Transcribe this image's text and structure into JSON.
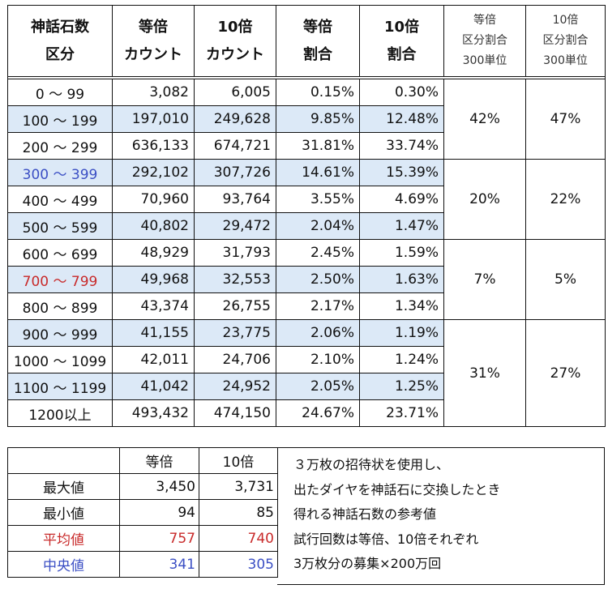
{
  "main_table": {
    "headers": {
      "range": [
        "神話石数",
        "区分"
      ],
      "count_1x": [
        "等倍",
        "カウント"
      ],
      "count_10x": [
        "10倍",
        "カウント"
      ],
      "ratio_1x": [
        "等倍",
        "割合"
      ],
      "ratio_10x": [
        "10倍",
        "割合"
      ],
      "bucket_1x": [
        "等倍",
        "区分割合",
        "300単位"
      ],
      "bucket_10x": [
        "10倍",
        "区分割合",
        "300単位"
      ]
    },
    "rows": [
      {
        "range": "0 〜 99",
        "count_1x": "3,082",
        "count_10x": "6,005",
        "ratio_1x": "0.15%",
        "ratio_10x": "0.30%"
      },
      {
        "range": "100 〜 199",
        "count_1x": "197,010",
        "count_10x": "249,628",
        "ratio_1x": "9.85%",
        "ratio_10x": "12.48%"
      },
      {
        "range": "200 〜 299",
        "count_1x": "636,133",
        "count_10x": "674,721",
        "ratio_1x": "31.81%",
        "ratio_10x": "33.74%"
      },
      {
        "range": "300 〜 399",
        "count_1x": "292,102",
        "count_10x": "307,726",
        "ratio_1x": "14.61%",
        "ratio_10x": "15.39%"
      },
      {
        "range": "400 〜 499",
        "count_1x": "70,960",
        "count_10x": "93,764",
        "ratio_1x": "3.55%",
        "ratio_10x": "4.69%"
      },
      {
        "range": "500 〜 599",
        "count_1x": "40,802",
        "count_10x": "29,472",
        "ratio_1x": "2.04%",
        "ratio_10x": "1.47%"
      },
      {
        "range": "600 〜 699",
        "count_1x": "48,929",
        "count_10x": "31,793",
        "ratio_1x": "2.45%",
        "ratio_10x": "1.59%"
      },
      {
        "range": "700 〜 799",
        "count_1x": "49,968",
        "count_10x": "32,553",
        "ratio_1x": "2.50%",
        "ratio_10x": "1.63%"
      },
      {
        "range": "800 〜 899",
        "count_1x": "43,374",
        "count_10x": "26,755",
        "ratio_1x": "2.17%",
        "ratio_10x": "1.34%"
      },
      {
        "range": "900 〜 999",
        "count_1x": "41,155",
        "count_10x": "23,775",
        "ratio_1x": "2.06%",
        "ratio_10x": "1.19%"
      },
      {
        "range": "1000 〜 1099",
        "count_1x": "42,011",
        "count_10x": "24,706",
        "ratio_1x": "2.10%",
        "ratio_10x": "1.24%"
      },
      {
        "range": "1100 〜 1199",
        "count_1x": "41,042",
        "count_10x": "24,952",
        "ratio_1x": "2.05%",
        "ratio_10x": "1.25%"
      },
      {
        "range": "1200以上",
        "count_1x": "493,432",
        "count_10x": "474,150",
        "ratio_1x": "24.67%",
        "ratio_10x": "23.71%"
      }
    ],
    "buckets": [
      {
        "pct_1x": "42%",
        "pct_10x": "47%"
      },
      {
        "pct_1x": "20%",
        "pct_10x": "22%"
      },
      {
        "pct_1x": "7%",
        "pct_10x": "5%"
      },
      {
        "pct_1x": "31%",
        "pct_10x": "27%"
      }
    ]
  },
  "stats_table": {
    "headers": {
      "col_1x": "等倍",
      "col_10x": "10倍"
    },
    "rows": [
      {
        "label": "最大値",
        "v1": "3,450",
        "v10": "3,731"
      },
      {
        "label": "最小値",
        "v1": "94",
        "v10": "85"
      },
      {
        "label": "平均値",
        "v1": "757",
        "v10": "740"
      },
      {
        "label": "中央値",
        "v1": "341",
        "v10": "305"
      }
    ]
  },
  "note": {
    "lines": [
      "３万枚の招待状を使用し、",
      "出たダイヤを神話石に交換したとき",
      "得れる神話石数の参考値",
      "試行回数は等倍、10倍それぞれ",
      "3万枚分の募集×200万回"
    ]
  },
  "colors": {
    "highlight_row_bg": "#dce9f7",
    "blue_text": "#3b4fc4",
    "red_text": "#c82a2a"
  }
}
